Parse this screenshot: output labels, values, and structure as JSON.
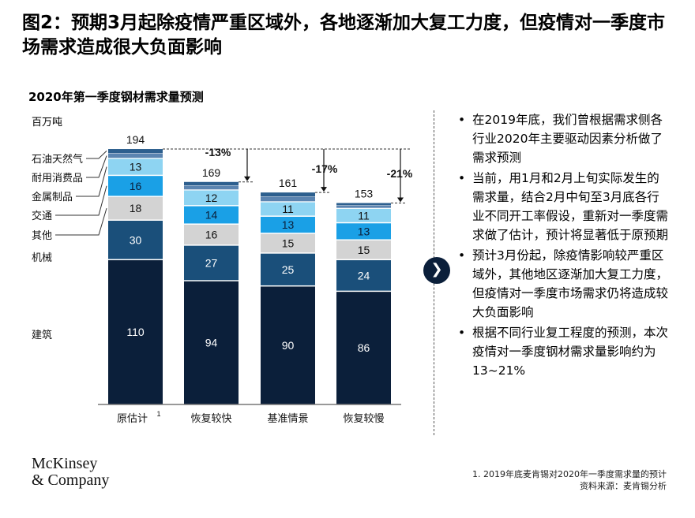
{
  "page": {
    "title": "图2：预期3月起除疫情严重区域外，各地逐渐加大复工力度，但疫情对一季度市场需求造成很大负面影响",
    "chart_title": "2020年第一季度钢材需求量预测",
    "unit": "百万吨",
    "bullets": [
      "在2019年底，我们曾根据需求侧各行业2020年主要驱动因素分析做了需求预测",
      "当前，用1月和2月上旬实际发生的需求量，结合2月中旬至3月底各行业不同开工率假设，重新对一季度需求做了估计，预计将显著低于原预期",
      "预计3月份起，除疫情影响较严重区域外，其他地区逐渐加大复工力度，但疫情对一季度市场需求仍将造成较大负面影响",
      "根据不同行业复工程度的预测，本次疫情对一季度钢材需求量影响约为13~21%"
    ],
    "logo_line1": "McKinsey",
    "logo_line2": "& Company",
    "footnote": "1. 2019年底麦肯锡对2020年一季度需求量的预计",
    "source": "资料来源：麦肯锡分析",
    "arrow_icon": "chevron-right-icon"
  },
  "chart_data": {
    "type": "bar",
    "stacked": true,
    "categories": [
      "原估计",
      "恢复较快",
      "基准情景",
      "恢复较慢"
    ],
    "category_superscripts": [
      "1",
      "",
      "",
      ""
    ],
    "series": [
      {
        "name": "建筑",
        "values": [
          110,
          94,
          90,
          86
        ],
        "color": "#0b1f3a"
      },
      {
        "name": "机械",
        "values": [
          30,
          27,
          25,
          24
        ],
        "color": "#1a4f7a"
      },
      {
        "name": "其他",
        "values": [
          18,
          16,
          15,
          15
        ],
        "color": "#d3d3d3"
      },
      {
        "name": "交通",
        "values": [
          16,
          14,
          13,
          13
        ],
        "color": "#1aa0e6"
      },
      {
        "name": "金属制品",
        "values": [
          13,
          12,
          11,
          11
        ],
        "color": "#8ed4f2"
      },
      {
        "name": "耐用消费品",
        "values": [
          null,
          null,
          null,
          null
        ],
        "color": "#5b84b0"
      },
      {
        "name": "石油天然气",
        "values": [
          null,
          null,
          null,
          null
        ],
        "color": "#2d5f8e"
      }
    ],
    "totals": [
      194,
      169,
      161,
      153
    ],
    "changes": [
      {
        "label": "-13%",
        "to": 1
      },
      {
        "label": "-17%",
        "to": 2
      },
      {
        "label": "-21%",
        "to": 3
      }
    ],
    "ylim": [
      0,
      194
    ]
  }
}
